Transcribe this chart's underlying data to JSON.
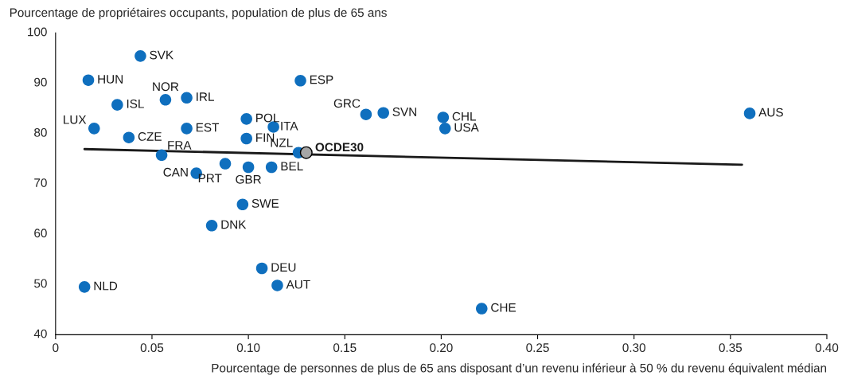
{
  "chart_data": {
    "type": "scatter",
    "ylabel": "Pourcentage de propriétaires occupants, population de plus de 65 ans",
    "xlabel": "Pourcentage de personnes de plus de 65 ans disposant d’un revenu inférieur à 50 % du revenu équivalent médian",
    "xlim": [
      0,
      0.4
    ],
    "xticks": [
      {
        "value": 0,
        "label": "0"
      },
      0.05,
      {
        "value": 0.1,
        "label": "0.10"
      },
      0.15,
      {
        "value": 0.2,
        "label": "0.20"
      },
      0.25,
      {
        "value": 0.3,
        "label": "0.30"
      },
      0.35,
      {
        "value": 0.4,
        "label": "0.40"
      }
    ],
    "ylim": [
      40,
      100
    ],
    "yticks": [
      40,
      50,
      60,
      70,
      80,
      90,
      100
    ],
    "grid": false,
    "series": [
      {
        "marker": "circle",
        "color": "#0f6fbe",
        "x": [
          0.044,
          0.017,
          0.057,
          0.068,
          0.032,
          0.02,
          0.038,
          0.068,
          0.055,
          0.073,
          0.088,
          0.1,
          0.112,
          0.099,
          0.099,
          0.113,
          0.126,
          0.127,
          0.161,
          0.17,
          0.201,
          0.202,
          0.36,
          0.097,
          0.081,
          0.107,
          0.115,
          0.015,
          0.221
        ],
        "values": [
          95.4,
          90.6,
          86.7,
          87.1,
          85.7,
          81,
          79.2,
          81,
          75.7,
          72.1,
          74,
          73.3,
          73.3,
          82.9,
          79,
          81.3,
          76.2,
          90.5,
          83.8,
          84.1,
          83.2,
          81,
          84,
          65.9,
          61.7,
          53.2,
          49.8,
          49.5,
          45.2
        ]
      },
      {
        "marker": "circle",
        "name": "OCDE30",
        "color": "#a6a6a6",
        "x": [
          0.13
        ],
        "values": [
          76.2
        ]
      },
      {
        "type": "line",
        "color": "#1a1a1a",
        "x": [
          0.015,
          0.356
        ],
        "values": [
          76.9,
          73.8
        ]
      }
    ],
    "annotations": [
      {
        "text": "SVK",
        "x": 0.044,
        "y": 95.4
      },
      {
        "text": "HUN",
        "x": 0.017,
        "y": 90.6
      },
      {
        "text": "NOR",
        "x": 0.057,
        "y": 86.7
      },
      {
        "text": "IRL",
        "x": 0.068,
        "y": 87.1
      },
      {
        "text": "ISL",
        "x": 0.032,
        "y": 85.7
      },
      {
        "text": "LUX",
        "x": 0.02,
        "y": 81
      },
      {
        "text": "CZE",
        "x": 0.038,
        "y": 79.2
      },
      {
        "text": "EST",
        "x": 0.068,
        "y": 81
      },
      {
        "text": "FRA",
        "x": 0.055,
        "y": 75.7
      },
      {
        "text": "CAN",
        "x": 0.073,
        "y": 72.1
      },
      {
        "text": "PRT",
        "x": 0.088,
        "y": 74
      },
      {
        "text": "GBR",
        "x": 0.1,
        "y": 73.3
      },
      {
        "text": "BEL",
        "x": 0.112,
        "y": 73.3
      },
      {
        "text": "POL",
        "x": 0.099,
        "y": 82.9
      },
      {
        "text": "FIN",
        "x": 0.099,
        "y": 79
      },
      {
        "text": "ITA",
        "x": 0.113,
        "y": 81.3
      },
      {
        "text": "NZL",
        "x": 0.126,
        "y": 76.2
      },
      {
        "text": "ESP",
        "x": 0.127,
        "y": 90.5
      },
      {
        "text": "GRC",
        "x": 0.161,
        "y": 83.8
      },
      {
        "text": "SVN",
        "x": 0.17,
        "y": 84.1
      },
      {
        "text": "CHL",
        "x": 0.201,
        "y": 83.2
      },
      {
        "text": "USA",
        "x": 0.202,
        "y": 81
      },
      {
        "text": "AUS",
        "x": 0.36,
        "y": 84
      },
      {
        "text": "SWE",
        "x": 0.097,
        "y": 65.9
      },
      {
        "text": "DNK",
        "x": 0.081,
        "y": 61.7
      },
      {
        "text": "DEU",
        "x": 0.107,
        "y": 53.2
      },
      {
        "text": "AUT",
        "x": 0.115,
        "y": 49.8
      },
      {
        "text": "NLD",
        "x": 0.015,
        "y": 49.5
      },
      {
        "text": "CHE",
        "x": 0.221,
        "y": 45.2
      }
    ]
  }
}
